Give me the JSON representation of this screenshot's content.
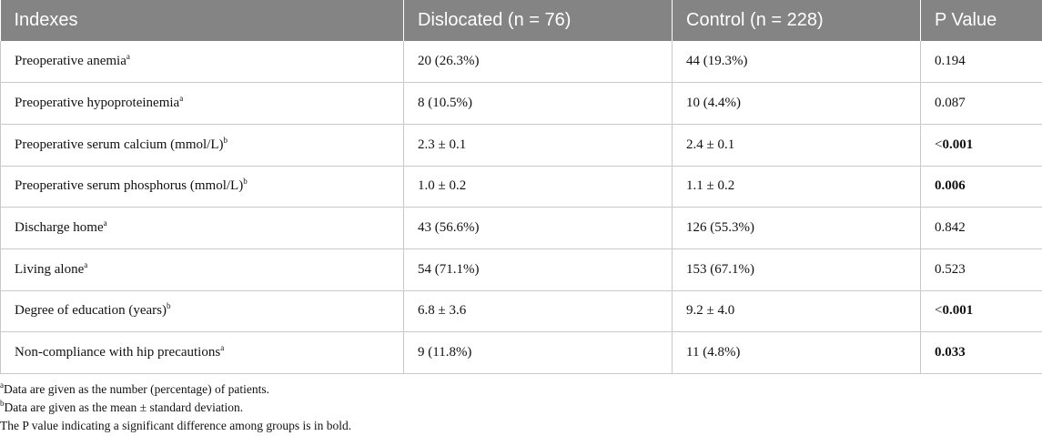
{
  "table": {
    "headers": [
      "Indexes",
      "Dislocated (n = 76)",
      "Control (n = 228)",
      "P Value"
    ],
    "rows": [
      {
        "label": "Preoperative anemia",
        "sup": "a",
        "dislocated": "20 (26.3%)",
        "control": "44 (19.3%)",
        "p_prefix": "",
        "p": "0.194",
        "p_bold": false
      },
      {
        "label": "Preoperative hypoproteinemia",
        "sup": "a",
        "dislocated": "8 (10.5%)",
        "control": "10 (4.4%)",
        "p_prefix": "",
        "p": "0.087",
        "p_bold": false
      },
      {
        "label": "Preoperative serum calcium (mmol/L)",
        "sup": "b",
        "dislocated": "2.3 ± 0.1",
        "control": "2.4 ± 0.1",
        "p_prefix": "<",
        "p": "0.001",
        "p_bold": true
      },
      {
        "label": "Preoperative serum phosphorus (mmol/L)",
        "sup": "b",
        "dislocated": "1.0 ± 0.2",
        "control": "1.1 ± 0.2",
        "p_prefix": "",
        "p": "0.006",
        "p_bold": true
      },
      {
        "label": "Discharge home",
        "sup": "a",
        "dislocated": "43 (56.6%)",
        "control": "126 (55.3%)",
        "p_prefix": "",
        "p": "0.842",
        "p_bold": false
      },
      {
        "label": "Living alone",
        "sup": "a",
        "dislocated": "54 (71.1%)",
        "control": "153 (67.1%)",
        "p_prefix": "",
        "p": "0.523",
        "p_bold": false
      },
      {
        "label": "Degree of education (years)",
        "sup": "b",
        "dislocated": "6.8 ± 3.6",
        "control": "9.2 ± 4.0",
        "p_prefix": "<",
        "p": "0.001",
        "p_bold": true
      },
      {
        "label": "Non-compliance with hip precautions",
        "sup": "a",
        "dislocated": "9 (11.8%)",
        "control": "11 (4.8%)",
        "p_prefix": "",
        "p": "0.033",
        "p_bold": true
      }
    ]
  },
  "footnotes": [
    {
      "sup": "a",
      "text": "Data are given as the number (percentage) of patients."
    },
    {
      "sup": "b",
      "text": "Data are given as the mean ± standard deviation."
    },
    {
      "sup": "",
      "text": "The P value indicating a significant difference among groups is in bold."
    }
  ],
  "colors": {
    "header_bg": "#848484",
    "header_text": "#ffffff",
    "grid": "#c9c9c9"
  }
}
